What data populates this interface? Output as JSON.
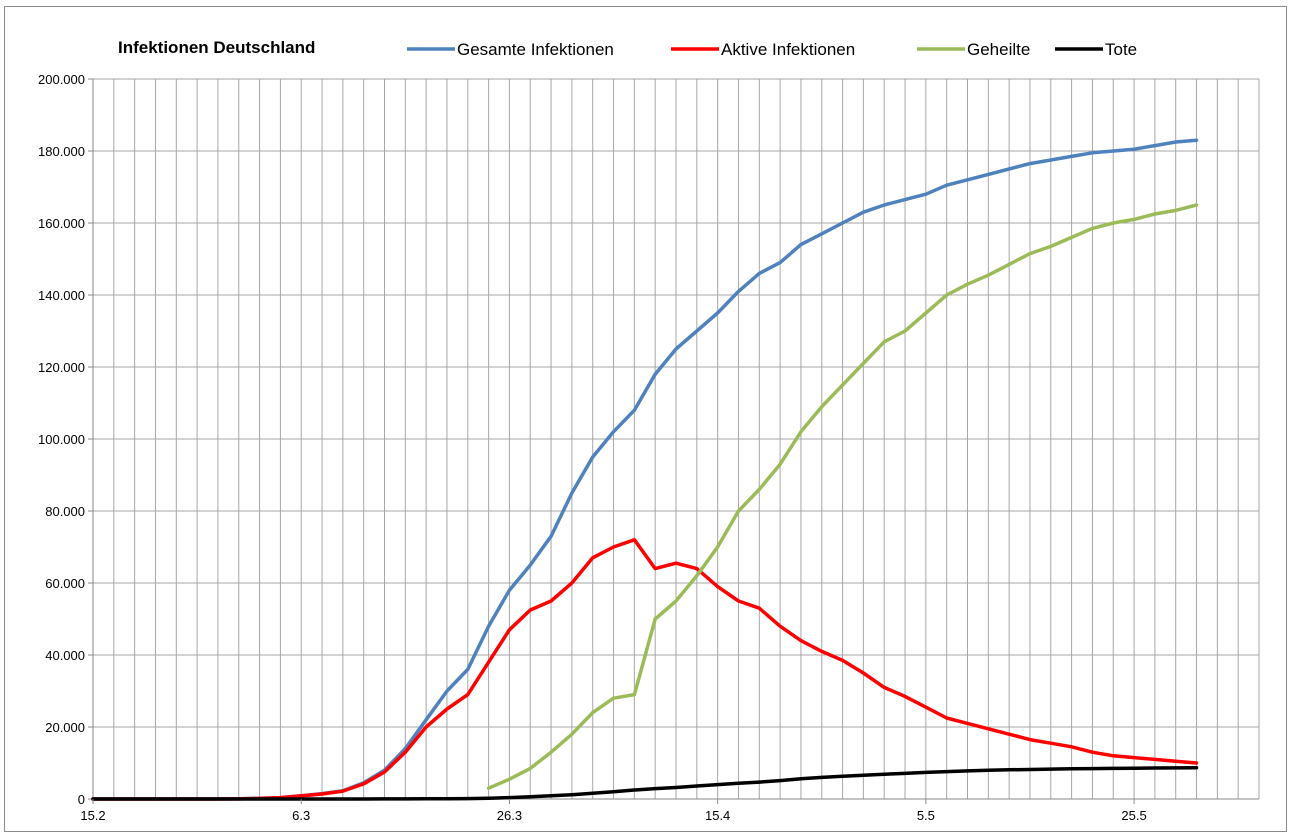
{
  "chart_data": {
    "type": "line",
    "title": "Infektionen Deutschland",
    "xlabel": "",
    "ylabel": "",
    "x_ticks": [
      "15.2",
      "6.3",
      "26.3",
      "15.4",
      "5.5",
      "25.5"
    ],
    "y_ticks": [
      "0",
      "20.000",
      "40.000",
      "60.000",
      "80.000",
      "100.000",
      "120.000",
      "140.000",
      "160.000",
      "180.000",
      "200.000"
    ],
    "xlim": [
      "15.2",
      "14.6"
    ],
    "ylim": [
      0,
      200000
    ],
    "grid": true,
    "legend_position": "top",
    "x": [
      "15.2",
      "17.2",
      "19.2",
      "21.2",
      "23.2",
      "25.2",
      "27.2",
      "29.2",
      "2.3",
      "4.3",
      "6.3",
      "8.3",
      "10.3",
      "12.3",
      "14.3",
      "16.3",
      "18.3",
      "20.3",
      "22.3",
      "24.3",
      "26.3",
      "28.3",
      "30.3",
      "1.4",
      "3.4",
      "5.4",
      "7.4",
      "9.4",
      "11.4",
      "13.4",
      "15.4",
      "17.4",
      "19.4",
      "21.4",
      "23.4",
      "25.4",
      "27.4",
      "29.4",
      "1.5",
      "3.5",
      "5.5",
      "7.5",
      "9.5",
      "11.5",
      "13.5",
      "15.5",
      "17.5",
      "19.5",
      "21.5",
      "23.5",
      "25.5",
      "27.5",
      "29.5",
      "31.5"
    ],
    "series": [
      {
        "name": "Gesamte Infektionen",
        "color": "#4f81bd",
        "values": [
          16,
          16,
          16,
          16,
          16,
          16,
          16,
          50,
          200,
          400,
          900,
          1500,
          2300,
          4500,
          8000,
          14000,
          22000,
          30000,
          36000,
          48000,
          58000,
          65000,
          73000,
          85000,
          95000,
          102000,
          108000,
          118000,
          125000,
          130000,
          135000,
          141000,
          146000,
          149000,
          154000,
          157000,
          160000,
          163000,
          165000,
          166500,
          168000,
          170500,
          172000,
          173500,
          175000,
          176500,
          177500,
          178500,
          179500,
          180000,
          180500,
          181500,
          182500,
          183000
        ]
      },
      {
        "name": "Aktive Infektionen",
        "color": "#ff0000",
        "values": [
          4,
          4,
          4,
          4,
          4,
          4,
          4,
          40,
          180,
          380,
          850,
          1400,
          2200,
          4200,
          7500,
          13000,
          20000,
          25000,
          29000,
          38000,
          47000,
          52500,
          55000,
          60000,
          67000,
          70000,
          72000,
          64000,
          65500,
          64000,
          59000,
          55000,
          53000,
          48000,
          44000,
          41000,
          38500,
          35000,
          31000,
          28500,
          25500,
          22500,
          21000,
          19500,
          18000,
          16500,
          15500,
          14500,
          13000,
          12000,
          11500,
          11000,
          10500,
          10000
        ]
      },
      {
        "name": "Geheilte",
        "color": "#9bbb59",
        "values": [
          null,
          null,
          null,
          null,
          null,
          null,
          null,
          null,
          null,
          null,
          null,
          null,
          null,
          null,
          null,
          null,
          null,
          null,
          null,
          3000,
          5500,
          8500,
          13000,
          18000,
          24000,
          28000,
          29000,
          50000,
          55000,
          62000,
          70000,
          80000,
          86000,
          93000,
          102000,
          109000,
          115000,
          121000,
          127000,
          130000,
          135000,
          140000,
          143000,
          145500,
          148500,
          151500,
          153500,
          156000,
          158500,
          160000,
          161000,
          162500,
          163500,
          165000
        ]
      },
      {
        "name": "Tote",
        "color": "#000000",
        "values": [
          0,
          0,
          0,
          0,
          0,
          0,
          0,
          0,
          0,
          0,
          0,
          0,
          0,
          0,
          20,
          40,
          60,
          90,
          120,
          200,
          400,
          600,
          900,
          1200,
          1600,
          2000,
          2500,
          2900,
          3200,
          3600,
          4000,
          4400,
          4700,
          5100,
          5600,
          6000,
          6300,
          6600,
          6900,
          7100,
          7400,
          7600,
          7800,
          8000,
          8100,
          8200,
          8300,
          8400,
          8450,
          8500,
          8550,
          8600,
          8650,
          8700
        ]
      }
    ]
  }
}
